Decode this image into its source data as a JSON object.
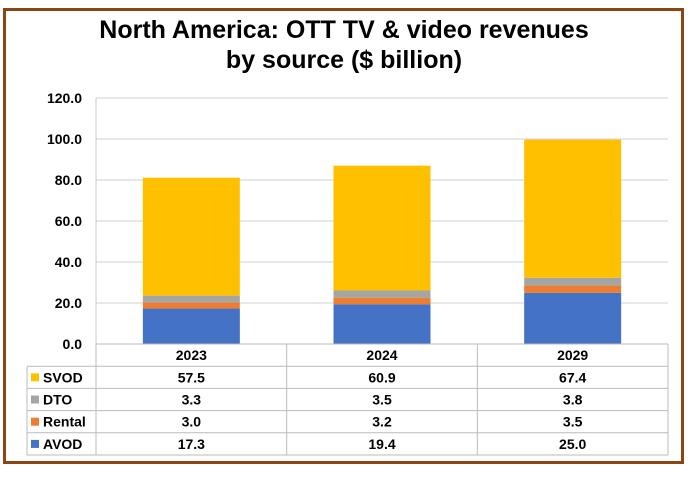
{
  "chart_data": {
    "type": "bar",
    "stacked": true,
    "title_line1": "North America: OTT TV & video revenues",
    "title_line2": "by source ($ billion)",
    "categories": [
      "2023",
      "2024",
      "2029"
    ],
    "ylim": [
      0,
      120
    ],
    "yticks": [
      "0.0",
      "20.0",
      "40.0",
      "60.0",
      "80.0",
      "100.0",
      "120.0"
    ],
    "grid": true,
    "legend_placement": "data-table",
    "series": [
      {
        "name": "AVOD",
        "color": "#4472C4",
        "values": [
          17.3,
          19.4,
          25.0
        ],
        "labels": [
          "17.3",
          "19.4",
          "25.0"
        ]
      },
      {
        "name": "Rental",
        "color": "#ED7D31",
        "values": [
          3.0,
          3.2,
          3.5
        ],
        "labels": [
          "3.0",
          "3.2",
          "3.5"
        ]
      },
      {
        "name": "DTO",
        "color": "#A5A5A5",
        "values": [
          3.3,
          3.5,
          3.8
        ],
        "labels": [
          "3.3",
          "3.5",
          "3.8"
        ]
      },
      {
        "name": "SVOD",
        "color": "#FFC000",
        "values": [
          57.5,
          60.9,
          67.4
        ],
        "labels": [
          "57.5",
          "60.9",
          "67.4"
        ]
      }
    ],
    "table_row_order": [
      "SVOD",
      "DTO",
      "Rental",
      "AVOD"
    ]
  }
}
